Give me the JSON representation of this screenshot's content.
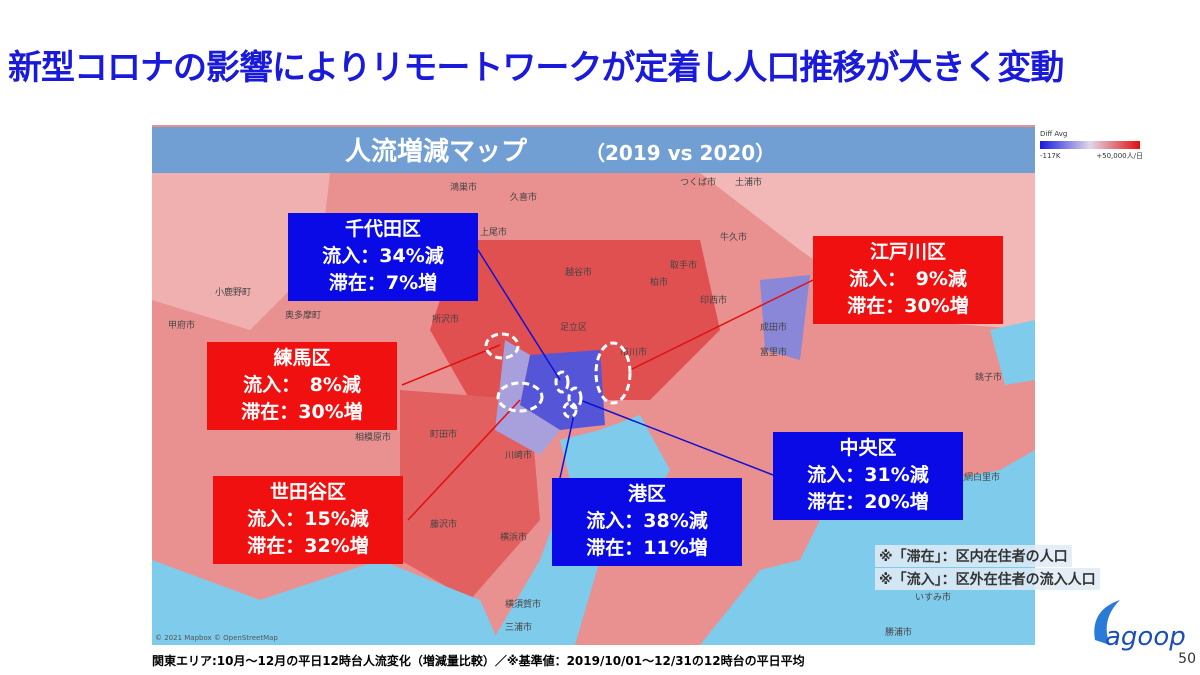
{
  "header": {
    "title": "新型コロナの影響によりリモートワークが定着し人口推移が大きく変動"
  },
  "map": {
    "title": "人流増減マップ",
    "period": "（2019 vs 2020）",
    "legend": {
      "title": "Diff Avg",
      "min_label": "-117K",
      "max_label": "+50,000人/日"
    },
    "copyright": "© 2021 Mapbox © OpenStreetMap",
    "places": [
      "つくば市",
      "土浦市",
      "鴻巣市",
      "久喜市",
      "上尾市",
      "越谷市",
      "柏市",
      "取手市",
      "牛久市",
      "印西市",
      "足立区",
      "所沢市",
      "市川市",
      "成田市",
      "富里市",
      "奥多摩町",
      "甲府市",
      "相模原市",
      "町田市",
      "川崎市",
      "藤沢市",
      "横須賀市",
      "三浦市",
      "横浜市",
      "銚子市",
      "いすみ市",
      "勝浦市",
      "大網白里市",
      "小鹿野町"
    ]
  },
  "wards": [
    {
      "name": "千代田区",
      "inflow": "流入：34%減",
      "stay": "滞在：7%増"
    },
    {
      "name": "江戸川区",
      "inflow": "流入：　9%減",
      "stay": "滞在：30%増"
    },
    {
      "name": "練馬区",
      "inflow": "流入：　8%減",
      "stay": "滞在：30%増"
    },
    {
      "name": "中央区",
      "inflow": "流入：31%減",
      "stay": "滞在：20%増"
    },
    {
      "name": "世田谷区",
      "inflow": "流入：15%減",
      "stay": "滞在：32%増"
    },
    {
      "name": "港区",
      "inflow": "流入：38%減",
      "stay": "滞在：11%増"
    }
  ],
  "notes": [
    "※「滞在」：区内在住者の人口",
    "※「流入」：区外在住者の流入人口"
  ],
  "footer": "関東エリア:10月～12月の平日12時台人流変化（増減量比較）／※基準値：2019/10/01～12/31の12時台の平日平均",
  "logo": "agoop",
  "page_number": "50"
}
